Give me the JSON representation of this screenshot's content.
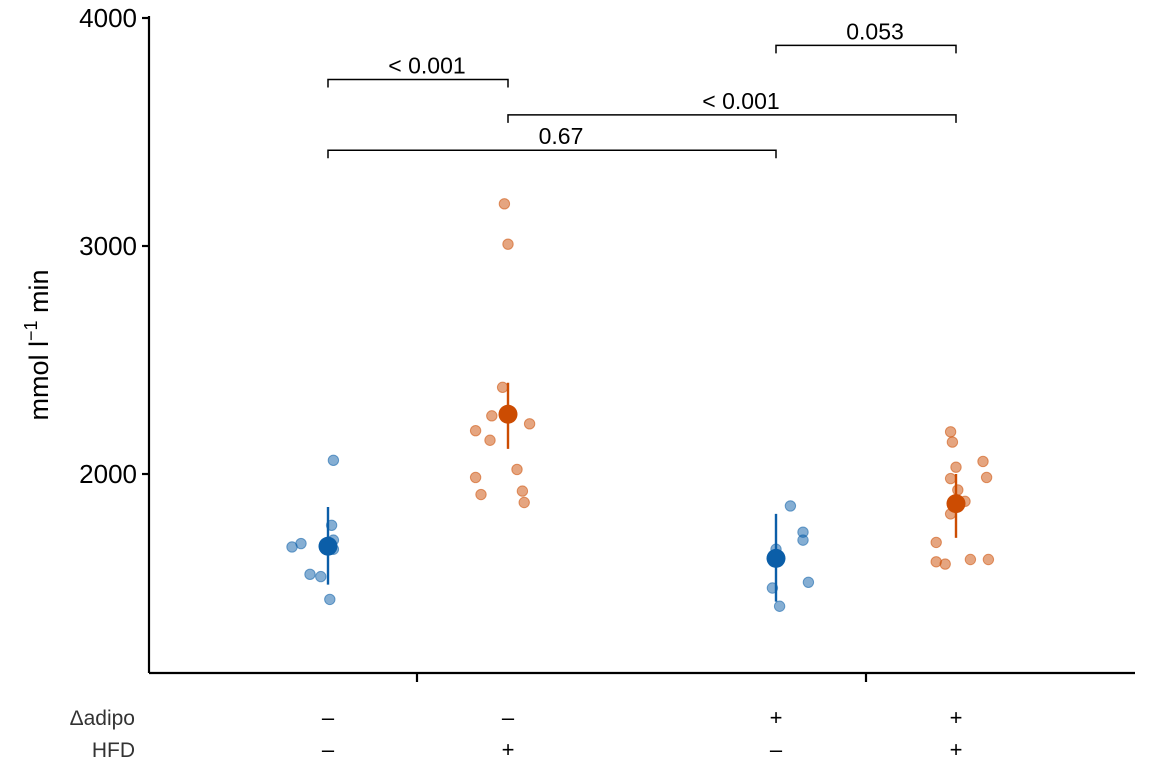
{
  "chart_data": {
    "type": "scatter",
    "ylabel": {
      "text": "mmol l",
      "sup": "−1",
      "suffix": " min"
    },
    "ylim": [
      1130,
      4000
    ],
    "yticks": [
      "2000",
      "3000",
      "4000"
    ],
    "grid": false,
    "legend": "none",
    "colors": {
      "chow": "#0b5ea8",
      "hfd": "#cc4c02"
    },
    "factors": [
      {
        "name": "Δadipo",
        "levels": [
          "–",
          "–",
          "+",
          "+"
        ]
      },
      {
        "name": "HFD",
        "levels": [
          "–",
          "+",
          "–",
          "+"
        ]
      }
    ],
    "groups": [
      {
        "color_key": "chow",
        "mean": 1683,
        "err_low": 1515,
        "err_high": 1855,
        "points": [
          [
            -0.2,
            1680
          ],
          [
            -0.15,
            1695
          ],
          [
            -0.1,
            1560
          ],
          [
            -0.04,
            1550
          ],
          [
            0.01,
            1450
          ],
          [
            0.02,
            1775
          ],
          [
            0.03,
            1710
          ],
          [
            0.03,
            1670
          ],
          [
            0.03,
            2060
          ]
        ]
      },
      {
        "color_key": "hfd",
        "mean": 2262,
        "err_low": 2110,
        "err_high": 2400,
        "points": [
          [
            -0.18,
            2190
          ],
          [
            -0.18,
            1985
          ],
          [
            -0.15,
            1910
          ],
          [
            -0.1,
            2148
          ],
          [
            -0.09,
            2255
          ],
          [
            -0.03,
            2380
          ],
          [
            -0.02,
            3185
          ],
          [
            0.0,
            3008
          ],
          [
            0.05,
            2020
          ],
          [
            0.08,
            1925
          ],
          [
            0.09,
            1875
          ],
          [
            0.12,
            2220
          ]
        ]
      },
      {
        "color_key": "chow",
        "mean": 1630,
        "err_low": 1440,
        "err_high": 1825,
        "points": [
          [
            -0.02,
            1500
          ],
          [
            0.0,
            1670
          ],
          [
            0.02,
            1420
          ],
          [
            0.08,
            1860
          ],
          [
            0.15,
            1745
          ],
          [
            0.15,
            1710
          ],
          [
            0.18,
            1525
          ]
        ]
      },
      {
        "color_key": "hfd",
        "mean": 1870,
        "err_low": 1720,
        "err_high": 2000,
        "points": [
          [
            -0.11,
            1700
          ],
          [
            -0.11,
            1615
          ],
          [
            -0.06,
            1605
          ],
          [
            -0.03,
            2185
          ],
          [
            -0.03,
            1980
          ],
          [
            -0.03,
            1825
          ],
          [
            -0.02,
            2140
          ],
          [
            0.0,
            2030
          ],
          [
            0.01,
            1930
          ],
          [
            0.05,
            1880
          ],
          [
            0.08,
            1625
          ],
          [
            0.15,
            2055
          ],
          [
            0.17,
            1985
          ],
          [
            0.18,
            1625
          ]
        ]
      }
    ],
    "comparisons": [
      {
        "from": 0,
        "to": 1,
        "y": 3730,
        "label": "< 0.001"
      },
      {
        "from": 2,
        "to": 3,
        "y": 3880,
        "label": "0.053"
      },
      {
        "from": 1,
        "to": 3,
        "y": 3575,
        "label": "< 0.001"
      },
      {
        "from": 0,
        "to": 2,
        "y": 3420,
        "label": "0.67"
      }
    ]
  }
}
